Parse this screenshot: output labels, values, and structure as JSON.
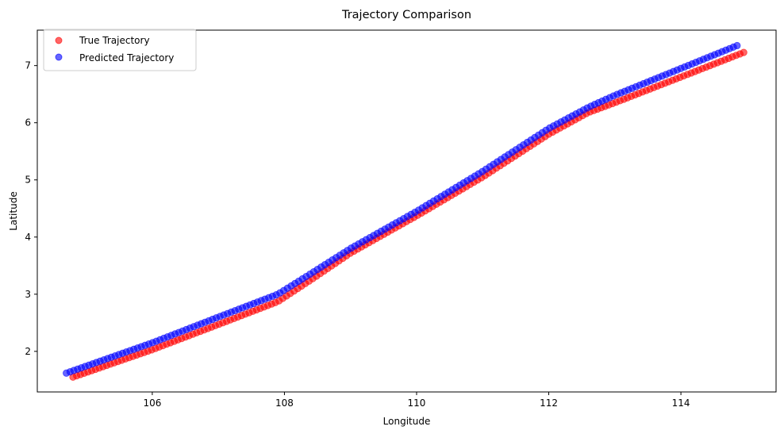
{
  "chart_data": {
    "type": "scatter",
    "title": "Trajectory Comparison",
    "xlabel": "Longitude",
    "ylabel": "Latitude",
    "xlim": [
      104.26,
      115.44
    ],
    "ylim": [
      1.29,
      7.62
    ],
    "xticks": [
      106,
      108,
      110,
      112,
      114
    ],
    "yticks": [
      2,
      3,
      4,
      5,
      6,
      7
    ],
    "grid": false,
    "legend_position": "top-left",
    "point_count": 180,
    "series": [
      {
        "name": "True Trajectory",
        "color": "#ff0000",
        "alpha": 0.6,
        "path": [
          {
            "x": 104.8,
            "y": 1.55
          },
          {
            "x": 106.0,
            "y": 2.03
          },
          {
            "x": 107.0,
            "y": 2.47
          },
          {
            "x": 107.9,
            "y": 2.87
          },
          {
            "x": 108.4,
            "y": 3.25
          },
          {
            "x": 109.0,
            "y": 3.72
          },
          {
            "x": 110.0,
            "y": 4.37
          },
          {
            "x": 111.0,
            "y": 5.05
          },
          {
            "x": 112.0,
            "y": 5.8
          },
          {
            "x": 112.6,
            "y": 6.18
          },
          {
            "x": 113.0,
            "y": 6.35
          },
          {
            "x": 114.0,
            "y": 6.8
          },
          {
            "x": 114.95,
            "y": 7.23
          }
        ]
      },
      {
        "name": "Predicted Trajectory",
        "color": "#0000ff",
        "alpha": 0.6,
        "path": [
          {
            "x": 104.7,
            "y": 1.62
          },
          {
            "x": 106.0,
            "y": 2.15
          },
          {
            "x": 107.0,
            "y": 2.6
          },
          {
            "x": 107.9,
            "y": 3.0
          },
          {
            "x": 108.4,
            "y": 3.36
          },
          {
            "x": 109.0,
            "y": 3.8
          },
          {
            "x": 110.0,
            "y": 4.45
          },
          {
            "x": 111.0,
            "y": 5.15
          },
          {
            "x": 112.0,
            "y": 5.9
          },
          {
            "x": 112.6,
            "y": 6.27
          },
          {
            "x": 113.0,
            "y": 6.48
          },
          {
            "x": 114.0,
            "y": 6.95
          },
          {
            "x": 114.85,
            "y": 7.35
          }
        ]
      }
    ]
  }
}
